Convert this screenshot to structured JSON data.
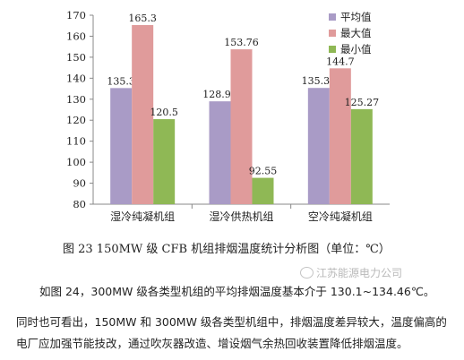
{
  "chart_data": {
    "type": "bar",
    "categories": [
      "湿冷纯凝机组",
      "湿冷供热机组",
      "空冷纯凝机组"
    ],
    "series": [
      {
        "name": "平均值",
        "values": [
          135.3,
          128.99,
          135.36
        ],
        "labels": [
          "135.3",
          "128.99",
          "135.36"
        ],
        "color": "#a99bc6"
      },
      {
        "name": "最大值",
        "values": [
          165.3,
          153.76,
          144.7
        ],
        "labels": [
          "165.3",
          "153.76",
          "144.7"
        ],
        "color": "#e09b9b"
      },
      {
        "name": "最小值",
        "values": [
          120.5,
          92.55,
          125.27
        ],
        "labels": [
          "120.5",
          "92.55",
          "125.27"
        ],
        "color": "#8fb855"
      }
    ],
    "ylim": [
      80,
      170
    ],
    "yticks": [
      80,
      90,
      100,
      110,
      120,
      130,
      140,
      150,
      160,
      170
    ],
    "grid": false,
    "legend": "top-right"
  },
  "caption": "图 23    150MW 级 CFB 机组排烟温度统计分析图（单位：℃）",
  "paragraphs": [
    "如图 24，300MW 级各类型机组的平均排烟温度基本介于 130.1~134.46℃。",
    "同时也可看出，150MW 和 300MW 级各类型机组中，排烟温度差异较大，温度偏高的",
    "电厂应加强节能技改，通过吹灰器改造、增设烟气余热回收装置降低排烟温度。"
  ],
  "watermark": "江苏能源电力公司"
}
